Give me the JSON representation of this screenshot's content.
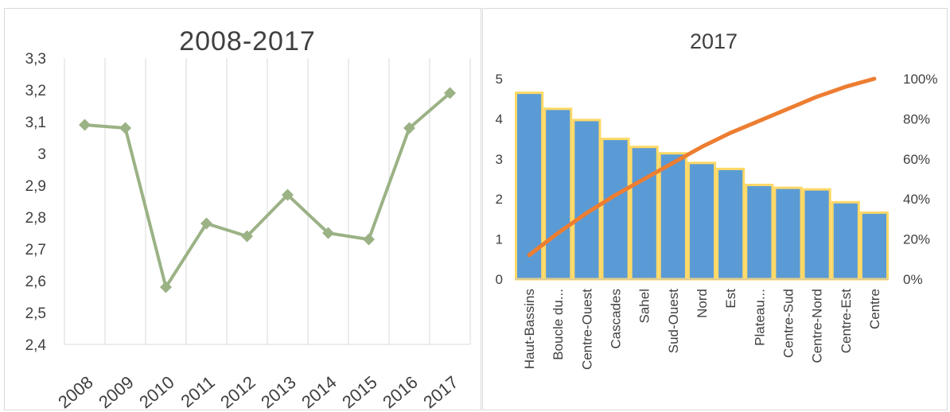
{
  "chart_data": [
    {
      "type": "line",
      "title": "2008-2017",
      "x": [
        "2008",
        "2009",
        "2010",
        "2011",
        "2012",
        "2013",
        "2014",
        "2015",
        "2016",
        "2017"
      ],
      "y_ticks": [
        "2,4",
        "2,5",
        "2,6",
        "2,7",
        "2,8",
        "2,9",
        "3",
        "3,1",
        "3,2",
        "3,3"
      ],
      "series": [
        {
          "values": [
            3.09,
            3.08,
            2.58,
            2.78,
            2.74,
            2.87,
            2.75,
            2.73,
            3.08,
            3.19
          ]
        }
      ],
      "ylim": [
        2.4,
        3.3
      ],
      "grid": "vertical",
      "line_color": "#9bb285",
      "marker": "diamond"
    },
    {
      "type": "bar",
      "title": "2017",
      "categories": [
        "Haut-Bassins",
        "Boucle du...",
        "Centre-Ouest",
        "Cascades",
        "Sahel",
        "Sud-Ouest",
        "Nord",
        "Est",
        "Plateau...",
        "Centre-Sud",
        "Centre-Nord",
        "Centre-Est",
        "Centre"
      ],
      "series": [
        {
          "type": "bar",
          "values": [
            4.65,
            4.25,
            3.97,
            3.5,
            3.3,
            3.14,
            2.9,
            2.75,
            2.35,
            2.28,
            2.24,
            1.92,
            1.66
          ],
          "fill": "#5b9bd5",
          "stroke": "#ffd966"
        },
        {
          "type": "line",
          "axis": "secondary",
          "values": [
            0.12,
            0.23,
            0.33,
            0.42,
            0.5,
            0.58,
            0.66,
            0.73,
            0.79,
            0.85,
            0.91,
            0.96,
            1.0
          ],
          "color": "#ed7d31"
        }
      ],
      "y_ticks": [
        "0",
        "1",
        "2",
        "3",
        "4",
        "5"
      ],
      "ylim": [
        0,
        5
      ],
      "y2_ticks": [
        "0%",
        "20%",
        "40%",
        "60%",
        "80%",
        "100%"
      ],
      "y2lim": [
        0,
        1
      ],
      "grid": "none"
    }
  ]
}
